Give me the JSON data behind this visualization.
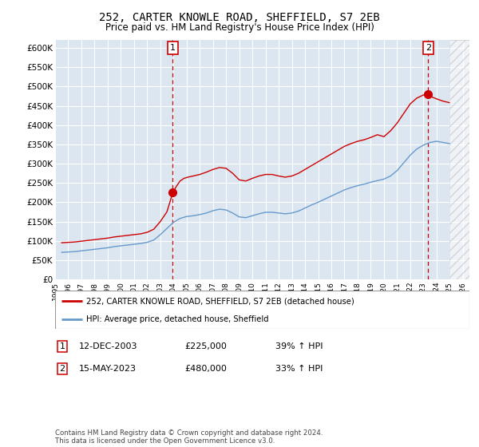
{
  "title": "252, CARTER KNOWLE ROAD, SHEFFIELD, S7 2EB",
  "subtitle": "Price paid vs. HM Land Registry's House Price Index (HPI)",
  "ylim": [
    0,
    620000
  ],
  "yticks": [
    0,
    50000,
    100000,
    150000,
    200000,
    250000,
    300000,
    350000,
    400000,
    450000,
    500000,
    550000,
    600000
  ],
  "ytick_labels": [
    "£0",
    "£50K",
    "£100K",
    "£150K",
    "£200K",
    "£250K",
    "£300K",
    "£350K",
    "£400K",
    "£450K",
    "£500K",
    "£550K",
    "£600K"
  ],
  "plot_bg_color": "#dce6f1",
  "grid_color": "#ffffff",
  "red_line_color": "#cc0000",
  "blue_line_color": "#6699cc",
  "marker1_x": 2003.95,
  "marker1_y": 225000,
  "marker2_x": 2023.37,
  "marker2_y": 480000,
  "legend_red_label": "252, CARTER KNOWLE ROAD, SHEFFIELD, S7 2EB (detached house)",
  "legend_blue_label": "HPI: Average price, detached house, Sheffield",
  "note1_num": "1",
  "note1_date": "12-DEC-2003",
  "note1_price": "£225,000",
  "note1_hpi": "39% ↑ HPI",
  "note2_num": "2",
  "note2_date": "15-MAY-2023",
  "note2_price": "£480,000",
  "note2_hpi": "33% ↑ HPI",
  "footer": "Contains HM Land Registry data © Crown copyright and database right 2024.\nThis data is licensed under the Open Government Licence v3.0.",
  "hpi_red_data_x": [
    1995.5,
    1996.0,
    1996.5,
    1997.0,
    1997.5,
    1998.0,
    1998.5,
    1999.0,
    1999.5,
    2000.0,
    2000.5,
    2001.0,
    2001.5,
    2002.0,
    2002.5,
    2003.0,
    2003.5,
    2003.95,
    2004.2,
    2004.5,
    2004.8,
    2005.1,
    2005.5,
    2006.0,
    2006.5,
    2007.0,
    2007.5,
    2008.0,
    2008.5,
    2009.0,
    2009.5,
    2010.0,
    2010.5,
    2011.0,
    2011.5,
    2012.0,
    2012.5,
    2013.0,
    2013.5,
    2014.0,
    2014.5,
    2015.0,
    2015.5,
    2016.0,
    2016.5,
    2017.0,
    2017.5,
    2018.0,
    2018.5,
    2019.0,
    2019.5,
    2020.0,
    2020.5,
    2021.0,
    2021.5,
    2022.0,
    2022.5,
    2023.0,
    2023.37,
    2023.7,
    2024.0,
    2024.5,
    2025.0
  ],
  "hpi_red_data_y": [
    95000,
    96000,
    97000,
    99000,
    101000,
    103000,
    105000,
    107000,
    110000,
    112000,
    114000,
    116000,
    118000,
    122000,
    130000,
    150000,
    175000,
    225000,
    240000,
    255000,
    262000,
    265000,
    268000,
    272000,
    278000,
    285000,
    290000,
    288000,
    275000,
    258000,
    255000,
    262000,
    268000,
    272000,
    272000,
    268000,
    265000,
    268000,
    275000,
    285000,
    295000,
    305000,
    315000,
    325000,
    335000,
    345000,
    352000,
    358000,
    362000,
    368000,
    375000,
    370000,
    385000,
    405000,
    430000,
    455000,
    470000,
    478000,
    480000,
    472000,
    468000,
    462000,
    458000
  ],
  "hpi_blue_data_x": [
    1995.5,
    1996.0,
    1996.5,
    1997.0,
    1997.5,
    1998.0,
    1998.5,
    1999.0,
    1999.5,
    2000.0,
    2000.5,
    2001.0,
    2001.5,
    2002.0,
    2002.5,
    2003.0,
    2003.5,
    2004.0,
    2004.5,
    2005.0,
    2005.5,
    2006.0,
    2006.5,
    2007.0,
    2007.5,
    2008.0,
    2008.5,
    2009.0,
    2009.5,
    2010.0,
    2010.5,
    2011.0,
    2011.5,
    2012.0,
    2012.5,
    2013.0,
    2013.5,
    2014.0,
    2014.5,
    2015.0,
    2015.5,
    2016.0,
    2016.5,
    2017.0,
    2017.5,
    2018.0,
    2018.5,
    2019.0,
    2019.5,
    2020.0,
    2020.5,
    2021.0,
    2021.5,
    2022.0,
    2022.5,
    2023.0,
    2023.5,
    2024.0,
    2024.5,
    2025.0
  ],
  "hpi_blue_data_y": [
    70000,
    71000,
    72000,
    74000,
    76000,
    78000,
    80000,
    82000,
    85000,
    87000,
    89000,
    91000,
    93000,
    96000,
    102000,
    116000,
    132000,
    148000,
    158000,
    163000,
    165000,
    168000,
    172000,
    178000,
    182000,
    180000,
    172000,
    162000,
    160000,
    165000,
    170000,
    174000,
    174000,
    172000,
    170000,
    172000,
    177000,
    185000,
    193000,
    200000,
    208000,
    216000,
    224000,
    232000,
    238000,
    243000,
    247000,
    252000,
    256000,
    260000,
    268000,
    282000,
    302000,
    322000,
    338000,
    348000,
    355000,
    358000,
    355000,
    352000
  ],
  "xticks": [
    1995,
    1996,
    1997,
    1998,
    1999,
    2000,
    2001,
    2002,
    2003,
    2004,
    2005,
    2006,
    2007,
    2008,
    2009,
    2010,
    2011,
    2012,
    2013,
    2014,
    2015,
    2016,
    2017,
    2018,
    2019,
    2020,
    2021,
    2022,
    2023,
    2024,
    2025,
    2026
  ],
  "xlim": [
    1995.0,
    2026.5
  ],
  "hatch_start": 2025.0,
  "hatch_end": 2026.5
}
